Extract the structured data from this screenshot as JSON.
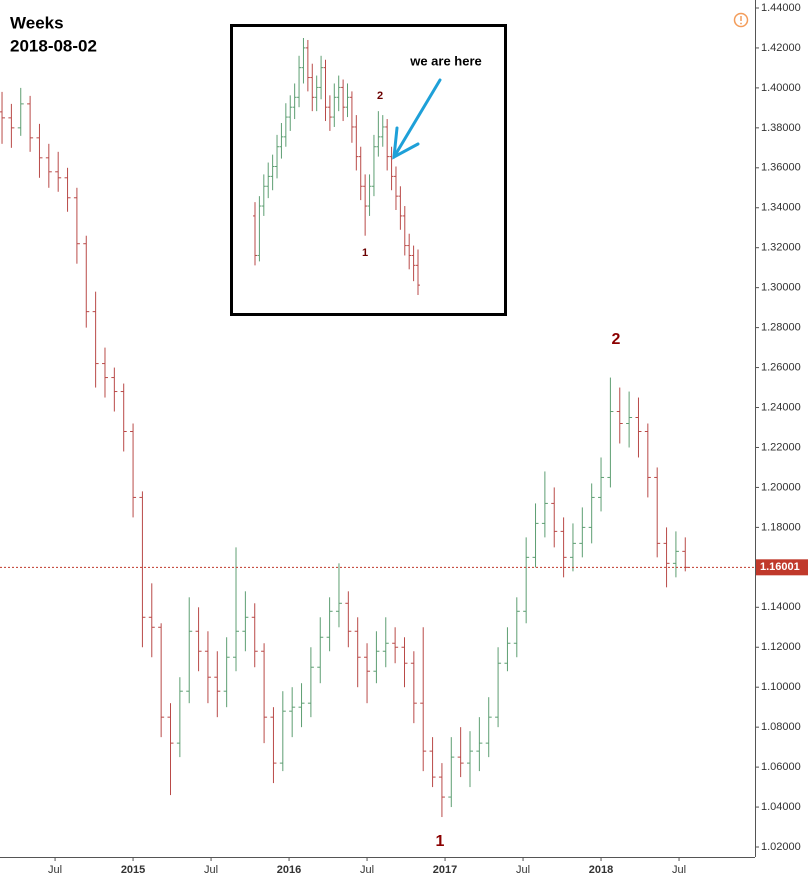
{
  "chart_data": [
    {
      "type": "ohlc",
      "title": "Weeks",
      "subtitle": "2018-08-02",
      "up_color": "#5d9e72",
      "down_color": "#b94a48",
      "xlim": [
        2014.147,
        2018.987
      ],
      "ylim": [
        1.015,
        1.444
      ],
      "xticks": [
        {
          "value": 2014.5,
          "label": "Jul"
        },
        2015,
        {
          "value": 2015.5,
          "label": "Jul"
        },
        2016,
        {
          "value": 2016.5,
          "label": "Jul"
        },
        2017,
        {
          "value": 2017.5,
          "label": "Jul"
        },
        2018,
        {
          "value": 2018.5,
          "label": "Jul"
        }
      ],
      "yticks": [
        {
          "value": 1.02,
          "label": "1.02000"
        },
        {
          "value": 1.04,
          "label": "1.04000"
        },
        {
          "value": 1.06,
          "label": "1.06000"
        },
        {
          "value": 1.08,
          "label": "1.08000"
        },
        {
          "value": 1.1,
          "label": "1.10000"
        },
        {
          "value": 1.12,
          "label": "1.12000"
        },
        {
          "value": 1.14,
          "label": "1.14000"
        },
        {
          "value": 1.16,
          "label": "1.16000"
        },
        {
          "value": 1.18,
          "label": "1.18000"
        },
        {
          "value": 1.2,
          "label": "1.20000"
        },
        {
          "value": 1.22,
          "label": "1.22000"
        },
        {
          "value": 1.24,
          "label": "1.24000"
        },
        {
          "value": 1.26,
          "label": "1.26000"
        },
        {
          "value": 1.28,
          "label": "1.28000"
        },
        {
          "value": 1.3,
          "label": "1.30000"
        },
        {
          "value": 1.32,
          "label": "1.32000"
        },
        {
          "value": 1.34,
          "label": "1.34000"
        },
        {
          "value": 1.36,
          "label": "1.36000"
        },
        {
          "value": 1.38,
          "label": "1.38000"
        },
        {
          "value": 1.4,
          "label": "1.40000"
        },
        {
          "value": 1.42,
          "label": "1.42000"
        },
        {
          "value": 1.44,
          "label": "1.44000"
        }
      ],
      "current_price": {
        "value": 1.16001,
        "label": "1.16001",
        "color": "#c0392b"
      },
      "annotations": [
        "1",
        "2"
      ],
      "bars": [
        [
          2014.16,
          1.388,
          1.398,
          1.372,
          1.385
        ],
        [
          2014.22,
          1.385,
          1.392,
          1.37,
          1.38
        ],
        [
          2014.28,
          1.38,
          1.4,
          1.376,
          1.392
        ],
        [
          2014.34,
          1.392,
          1.396,
          1.368,
          1.375
        ],
        [
          2014.4,
          1.375,
          1.382,
          1.355,
          1.365
        ],
        [
          2014.46,
          1.365,
          1.372,
          1.35,
          1.358
        ],
        [
          2014.52,
          1.358,
          1.368,
          1.348,
          1.355
        ],
        [
          2014.58,
          1.355,
          1.36,
          1.338,
          1.345
        ],
        [
          2014.64,
          1.345,
          1.35,
          1.312,
          1.322
        ],
        [
          2014.7,
          1.322,
          1.326,
          1.28,
          1.288
        ],
        [
          2014.76,
          1.288,
          1.298,
          1.25,
          1.262
        ],
        [
          2014.82,
          1.262,
          1.27,
          1.245,
          1.255
        ],
        [
          2014.88,
          1.255,
          1.26,
          1.238,
          1.248
        ],
        [
          2014.94,
          1.248,
          1.252,
          1.218,
          1.228
        ],
        [
          2015.0,
          1.228,
          1.232,
          1.185,
          1.195
        ],
        [
          2015.06,
          1.195,
          1.198,
          1.12,
          1.135
        ],
        [
          2015.12,
          1.135,
          1.152,
          1.115,
          1.13
        ],
        [
          2015.18,
          1.13,
          1.132,
          1.075,
          1.085
        ],
        [
          2015.24,
          1.085,
          1.092,
          1.046,
          1.072
        ],
        [
          2015.3,
          1.072,
          1.105,
          1.065,
          1.098
        ],
        [
          2015.36,
          1.098,
          1.145,
          1.092,
          1.128
        ],
        [
          2015.42,
          1.128,
          1.14,
          1.108,
          1.118
        ],
        [
          2015.48,
          1.118,
          1.128,
          1.092,
          1.105
        ],
        [
          2015.54,
          1.105,
          1.118,
          1.085,
          1.098
        ],
        [
          2015.6,
          1.098,
          1.125,
          1.09,
          1.115
        ],
        [
          2015.66,
          1.115,
          1.17,
          1.108,
          1.128
        ],
        [
          2015.72,
          1.128,
          1.148,
          1.118,
          1.135
        ],
        [
          2015.78,
          1.135,
          1.142,
          1.11,
          1.118
        ],
        [
          2015.84,
          1.118,
          1.122,
          1.072,
          1.085
        ],
        [
          2015.9,
          1.085,
          1.09,
          1.052,
          1.062
        ],
        [
          2015.96,
          1.062,
          1.098,
          1.058,
          1.088
        ],
        [
          2016.02,
          1.088,
          1.1,
          1.075,
          1.09
        ],
        [
          2016.08,
          1.09,
          1.102,
          1.08,
          1.092
        ],
        [
          2016.14,
          1.092,
          1.12,
          1.085,
          1.11
        ],
        [
          2016.2,
          1.11,
          1.135,
          1.102,
          1.125
        ],
        [
          2016.26,
          1.125,
          1.145,
          1.118,
          1.138
        ],
        [
          2016.32,
          1.138,
          1.162,
          1.13,
          1.142
        ],
        [
          2016.38,
          1.142,
          1.148,
          1.12,
          1.128
        ],
        [
          2016.44,
          1.128,
          1.135,
          1.1,
          1.115
        ],
        [
          2016.5,
          1.115,
          1.122,
          1.092,
          1.108
        ],
        [
          2016.56,
          1.108,
          1.128,
          1.102,
          1.118
        ],
        [
          2016.62,
          1.118,
          1.135,
          1.11,
          1.122
        ],
        [
          2016.68,
          1.122,
          1.13,
          1.112,
          1.12
        ],
        [
          2016.74,
          1.12,
          1.125,
          1.1,
          1.112
        ],
        [
          2016.8,
          1.112,
          1.118,
          1.082,
          1.092
        ],
        [
          2016.86,
          1.092,
          1.13,
          1.058,
          1.068
        ],
        [
          2016.92,
          1.068,
          1.075,
          1.05,
          1.055
        ],
        [
          2016.98,
          1.055,
          1.062,
          1.035,
          1.045
        ],
        [
          2017.04,
          1.045,
          1.075,
          1.04,
          1.065
        ],
        [
          2017.1,
          1.065,
          1.08,
          1.055,
          1.062
        ],
        [
          2017.16,
          1.062,
          1.078,
          1.05,
          1.068
        ],
        [
          2017.22,
          1.068,
          1.085,
          1.058,
          1.072
        ],
        [
          2017.28,
          1.072,
          1.095,
          1.065,
          1.085
        ],
        [
          2017.34,
          1.085,
          1.12,
          1.08,
          1.112
        ],
        [
          2017.4,
          1.112,
          1.13,
          1.108,
          1.122
        ],
        [
          2017.46,
          1.122,
          1.145,
          1.115,
          1.138
        ],
        [
          2017.52,
          1.138,
          1.175,
          1.132,
          1.165
        ],
        [
          2017.58,
          1.165,
          1.192,
          1.16,
          1.182
        ],
        [
          2017.64,
          1.182,
          1.208,
          1.175,
          1.192
        ],
        [
          2017.7,
          1.192,
          1.2,
          1.17,
          1.178
        ],
        [
          2017.76,
          1.178,
          1.185,
          1.155,
          1.165
        ],
        [
          2017.82,
          1.165,
          1.182,
          1.158,
          1.172
        ],
        [
          2017.88,
          1.172,
          1.19,
          1.165,
          1.18
        ],
        [
          2017.94,
          1.18,
          1.202,
          1.172,
          1.195
        ],
        [
          2018.0,
          1.195,
          1.215,
          1.188,
          1.205
        ],
        [
          2018.06,
          1.205,
          1.255,
          1.2,
          1.238
        ],
        [
          2018.12,
          1.238,
          1.25,
          1.222,
          1.232
        ],
        [
          2018.18,
          1.232,
          1.248,
          1.22,
          1.235
        ],
        [
          2018.24,
          1.235,
          1.245,
          1.215,
          1.228
        ],
        [
          2018.3,
          1.228,
          1.232,
          1.195,
          1.205
        ],
        [
          2018.36,
          1.205,
          1.21,
          1.165,
          1.172
        ],
        [
          2018.42,
          1.172,
          1.18,
          1.15,
          1.162
        ],
        [
          2018.48,
          1.162,
          1.178,
          1.155,
          1.168
        ],
        [
          2018.54,
          1.168,
          1.175,
          1.158,
          1.16
        ]
      ]
    },
    {
      "type": "ohlc-inset",
      "annotation": "we are here",
      "labels": [
        "2",
        "1"
      ],
      "up_color": "#5d9e72",
      "down_color": "#b94a48",
      "bars": [
        [
          1.335,
          1.342,
          1.31,
          1.315
        ],
        [
          1.315,
          1.345,
          1.312,
          1.34
        ],
        [
          1.34,
          1.356,
          1.335,
          1.35
        ],
        [
          1.35,
          1.362,
          1.344,
          1.355
        ],
        [
          1.355,
          1.366,
          1.348,
          1.36
        ],
        [
          1.36,
          1.376,
          1.354,
          1.37
        ],
        [
          1.37,
          1.382,
          1.364,
          1.375
        ],
        [
          1.375,
          1.392,
          1.37,
          1.385
        ],
        [
          1.385,
          1.396,
          1.378,
          1.39
        ],
        [
          1.39,
          1.402,
          1.384,
          1.395
        ],
        [
          1.395,
          1.416,
          1.39,
          1.41
        ],
        [
          1.41,
          1.425,
          1.402,
          1.42
        ],
        [
          1.42,
          1.424,
          1.398,
          1.405
        ],
        [
          1.405,
          1.412,
          1.388,
          1.395
        ],
        [
          1.395,
          1.406,
          1.388,
          1.4
        ],
        [
          1.4,
          1.416,
          1.394,
          1.41
        ],
        [
          1.41,
          1.414,
          1.383,
          1.39
        ],
        [
          1.39,
          1.396,
          1.378,
          1.385
        ],
        [
          1.385,
          1.402,
          1.38,
          1.395
        ],
        [
          1.395,
          1.406,
          1.388,
          1.4
        ],
        [
          1.4,
          1.404,
          1.383,
          1.39
        ],
        [
          1.39,
          1.402,
          1.385,
          1.395
        ],
        [
          1.395,
          1.398,
          1.372,
          1.38
        ],
        [
          1.38,
          1.386,
          1.358,
          1.365
        ],
        [
          1.365,
          1.37,
          1.343,
          1.35
        ],
        [
          1.35,
          1.356,
          1.325,
          1.34
        ],
        [
          1.34,
          1.356,
          1.335,
          1.35
        ],
        [
          1.35,
          1.376,
          1.345,
          1.37
        ],
        [
          1.37,
          1.388,
          1.365,
          1.375
        ],
        [
          1.375,
          1.386,
          1.37,
          1.38
        ],
        [
          1.38,
          1.384,
          1.358,
          1.365
        ],
        [
          1.365,
          1.37,
          1.348,
          1.355
        ],
        [
          1.355,
          1.36,
          1.338,
          1.345
        ],
        [
          1.345,
          1.35,
          1.328,
          1.335
        ],
        [
          1.335,
          1.34,
          1.315,
          1.32
        ],
        [
          1.32,
          1.326,
          1.308,
          1.315
        ],
        [
          1.315,
          1.32,
          1.302,
          1.31
        ],
        [
          1.31,
          1.318,
          1.295,
          1.3
        ]
      ]
    }
  ]
}
